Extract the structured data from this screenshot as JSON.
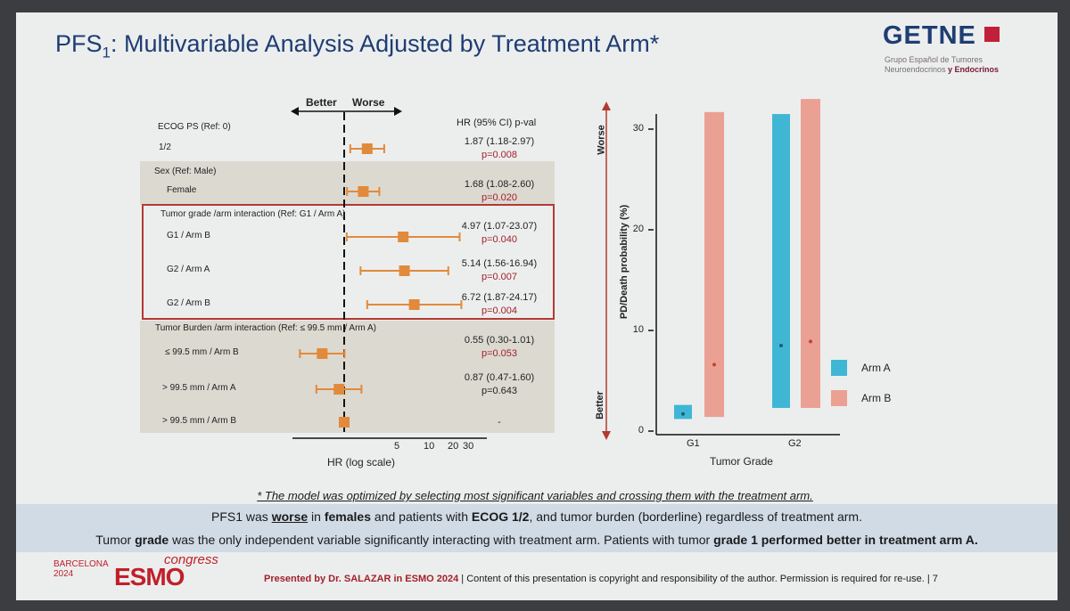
{
  "slide": {
    "title_main": "PFS",
    "title_sub": "1",
    "title_rest": ": Multivariable Analysis Adjusted by Treatment Arm*"
  },
  "logo": {
    "word": "GETNE",
    "line1": "Grupo Español de Tumores",
    "line2a": "Neuroendocrinos ",
    "line2b": "y Endocrinos"
  },
  "chart_data": [
    {
      "type": "forest",
      "better_label": "Better",
      "worse_label": "Worse",
      "header": "HR (95% CI) p-val",
      "xlabel": "HR (log scale)",
      "reference_line": 1,
      "xticks": [
        "5",
        "10",
        "20",
        "30"
      ],
      "groups": [
        {
          "label": "ECOG PS (Ref: 0)",
          "shaded": false,
          "highlighted": false
        },
        {
          "label": "Sex (Ref: Male)",
          "shaded": true,
          "highlighted": false
        },
        {
          "label": "Tumor grade /arm interaction (Ref: G1 / Arm A)",
          "shaded": false,
          "highlighted": true
        },
        {
          "label": "Tumor Burden /arm interaction (Ref: ≤ 99.5  mm / Arm A)",
          "shaded": true,
          "highlighted": false
        }
      ],
      "rows": [
        {
          "label": "1/2",
          "hr": 1.87,
          "lo": 1.18,
          "hi": 2.97,
          "hr_text": "1.87 (1.18-2.97)",
          "p_text": "p=0.008",
          "p_red": true
        },
        {
          "label": "Female",
          "hr": 1.68,
          "lo": 1.08,
          "hi": 2.6,
          "hr_text": "1.68 (1.08-2.60)",
          "p_text": "p=0.020",
          "p_red": true
        },
        {
          "label": "G1 / Arm B",
          "hr": 4.97,
          "lo": 1.07,
          "hi": 23.07,
          "hr_text": "4.97 (1.07-23.07)",
          "p_text": "p=0.040",
          "p_red": true
        },
        {
          "label": "G2 / Arm A",
          "hr": 5.14,
          "lo": 1.56,
          "hi": 16.94,
          "hr_text": "5.14 (1.56-16.94)",
          "p_text": "p=0.007",
          "p_red": true
        },
        {
          "label": "G2 / Arm B",
          "hr": 6.72,
          "lo": 1.87,
          "hi": 24.17,
          "hr_text": "6.72 (1.87-24.17)",
          "p_text": "p=0.004",
          "p_red": true
        },
        {
          "label": "≤ 99.5  mm / Arm B",
          "hr": 0.55,
          "lo": 0.3,
          "hi": 1.01,
          "hr_text": "0.55 (0.30-1.01)",
          "p_text": "p=0.053",
          "p_red": true
        },
        {
          "label": "> 99.5  mm / Arm A",
          "hr": 0.87,
          "lo": 0.47,
          "hi": 1.6,
          "hr_text": "0.87 (0.47-1.60)",
          "p_text": "p=0.643",
          "p_red": false
        },
        {
          "label": "> 99.5  mm / Arm B",
          "hr": 1.0,
          "lo": null,
          "hi": null,
          "hr_text": "",
          "p_text": "-",
          "p_red": false
        }
      ]
    },
    {
      "type": "bar",
      "title": "",
      "xlabel": "Tumor Grade",
      "ylabel": "PD/Death probability (%)",
      "worse_label": "Worse",
      "better_label": "Better",
      "categories": [
        "G1",
        "G2"
      ],
      "ylim": [
        0,
        32
      ],
      "yticks": [
        "0",
        "10",
        "20",
        "30"
      ],
      "series": [
        {
          "name": "Arm A",
          "color": "#3fb7d4",
          "bars": [
            {
              "lo": 1.2,
              "hi": 2.6,
              "point": 1.7
            },
            {
              "lo": 2.3,
              "hi": 31.5,
              "point": 8.5
            }
          ]
        },
        {
          "name": "Arm B",
          "color": "#eaa194",
          "bars": [
            {
              "lo": 1.4,
              "hi": 31.7,
              "point": 6.6
            },
            {
              "lo": 2.3,
              "hi": 33.0,
              "point": 8.9
            }
          ]
        }
      ]
    }
  ],
  "footnote": "* The model was optimized by selecting most significant variables and crossing them with the treatment arm.",
  "conclusion1": {
    "a": "PFS1 was ",
    "b": "worse",
    "c": " in ",
    "d": "females",
    "e": " and patients with ",
    "f": "ECOG 1/2",
    "g": ", and tumor burden (borderline) regardless of treatment arm."
  },
  "conclusion2": {
    "a": "Tumor ",
    "b": "grade",
    "c": " was the only independent variable significantly interacting with treatment arm. Patients with tumor ",
    "d": "grade 1 performed better in treatment arm A."
  },
  "footer": {
    "city": "BARCELONA",
    "year": "2024",
    "esmo": "ESMO",
    "congress": "congress",
    "presented_red": "Presented by Dr. SALAZAR in ESMO 2024",
    "presented_rest": " | Content of this presentation is copyright and responsibility of the author. Permission is required for re-use.  |  7"
  }
}
